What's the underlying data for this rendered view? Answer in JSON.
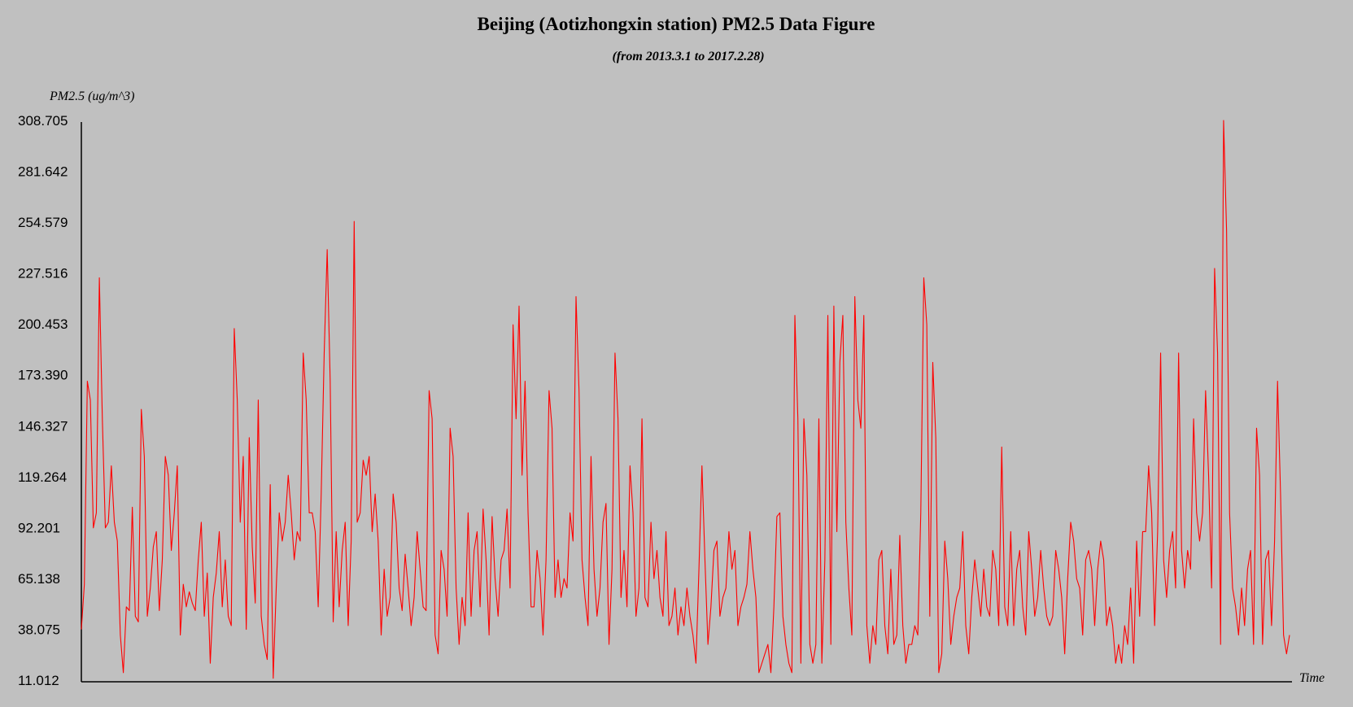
{
  "chart_data": {
    "type": "line",
    "title": "Beijing (Aotizhongxin station) PM2.5 Data Figure",
    "subtitle": "(from 2013.3.1 to 2017.2.28)",
    "ylabel": "PM2.5 (ug/m^3)",
    "xlabel": "Time",
    "ylim": [
      11.012,
      308.705
    ],
    "yticks": [
      "308.705",
      "281.642",
      "254.579",
      "227.516",
      "200.453",
      "173.390",
      "146.327",
      "119.264",
      "92.201",
      "65.138",
      "38.075",
      "11.012"
    ],
    "grid": false,
    "colors": {
      "background": "#c0c0c0",
      "line": "#ff0000",
      "axis": "#000000"
    },
    "series": [
      {
        "values": [
          38,
          62,
          170,
          160,
          92,
          100,
          225,
          150,
          92,
          95,
          125,
          95,
          85,
          35,
          15,
          50,
          48,
          103,
          45,
          42,
          155,
          130,
          45,
          60,
          82,
          90,
          48,
          75,
          130,
          120,
          80,
          100,
          125,
          35,
          62,
          50,
          58,
          52,
          48,
          75,
          95,
          45,
          68,
          20,
          55,
          68,
          90,
          50,
          75,
          45,
          40,
          198,
          160,
          95,
          130,
          38,
          140,
          82,
          52,
          160,
          45,
          30,
          22,
          115,
          12,
          60,
          100,
          85,
          95,
          120,
          100,
          75,
          90,
          85,
          185,
          160,
          100,
          100,
          90,
          50,
          110,
          185,
          240,
          170,
          42,
          90,
          50,
          80,
          95,
          40,
          85,
          255,
          95,
          100,
          128,
          120,
          130,
          90,
          110,
          85,
          35,
          70,
          45,
          55,
          110,
          95,
          60,
          48,
          78,
          60,
          40,
          55,
          90,
          70,
          50,
          48,
          165,
          150,
          35,
          25,
          80,
          70,
          45,
          145,
          130,
          60,
          30,
          55,
          40,
          100,
          45,
          80,
          90,
          50,
          102,
          75,
          35,
          98,
          65,
          45,
          75,
          80,
          102,
          60,
          200,
          150,
          210,
          120,
          170,
          100,
          50,
          50,
          80,
          65,
          35,
          75,
          165,
          145,
          55,
          75,
          55,
          65,
          60,
          100,
          85,
          215,
          165,
          75,
          55,
          40,
          130,
          70,
          45,
          60,
          95,
          105,
          30,
          70,
          185,
          150,
          55,
          80,
          50,
          125,
          100,
          45,
          60,
          150,
          55,
          50,
          95,
          65,
          80,
          55,
          45,
          90,
          40,
          45,
          60,
          35,
          50,
          40,
          60,
          45,
          35,
          20,
          70,
          125,
          75,
          30,
          50,
          80,
          85,
          45,
          55,
          60,
          90,
          70,
          80,
          40,
          50,
          55,
          62,
          90,
          70,
          55,
          15,
          20,
          25,
          30,
          15,
          50,
          98,
          100,
          45,
          30,
          20,
          15,
          205,
          150,
          20,
          150,
          120,
          30,
          20,
          30,
          150,
          20,
          75,
          205,
          30,
          210,
          90,
          180,
          205,
          95,
          60,
          35,
          215,
          160,
          145,
          205,
          40,
          20,
          40,
          30,
          75,
          80,
          40,
          25,
          70,
          30,
          35,
          88,
          40,
          20,
          30,
          30,
          40,
          35,
          100,
          225,
          200,
          45,
          180,
          140,
          15,
          25,
          85,
          65,
          30,
          45,
          55,
          60,
          90,
          40,
          25,
          55,
          75,
          60,
          45,
          70,
          50,
          45,
          80,
          70,
          40,
          135,
          50,
          40,
          90,
          40,
          70,
          80,
          50,
          35,
          90,
          70,
          45,
          55,
          80,
          60,
          45,
          40,
          45,
          80,
          70,
          55,
          25,
          65,
          95,
          85,
          65,
          60,
          35,
          75,
          80,
          70,
          40,
          70,
          85,
          75,
          40,
          50,
          40,
          20,
          30,
          20,
          40,
          30,
          60,
          20,
          85,
          45,
          90,
          90,
          125,
          100,
          40,
          90,
          185,
          75,
          55,
          80,
          90,
          60,
          185,
          80,
          60,
          80,
          70,
          150,
          100,
          85,
          100,
          165,
          120,
          60,
          230,
          185,
          30,
          310,
          250,
          100,
          60,
          50,
          35,
          60,
          40,
          70,
          80,
          30,
          145,
          120,
          30,
          75,
          80,
          40,
          85,
          170,
          110,
          35,
          25,
          35
        ]
      }
    ]
  }
}
